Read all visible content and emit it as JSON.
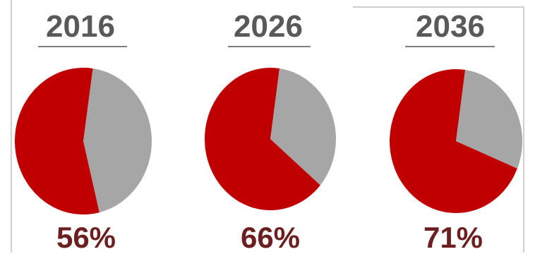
{
  "chart_data": {
    "type": "pie",
    "colors": {
      "primary": "#c00000",
      "remainder": "#a6a6a6",
      "heading": "#595959",
      "percent": "#6b1f1f"
    },
    "charts": [
      {
        "category": "2016",
        "value": 56,
        "label": "56%"
      },
      {
        "category": "2026",
        "value": 66,
        "label": "66%"
      },
      {
        "category": "2036",
        "value": 71,
        "label": "71%"
      }
    ]
  }
}
